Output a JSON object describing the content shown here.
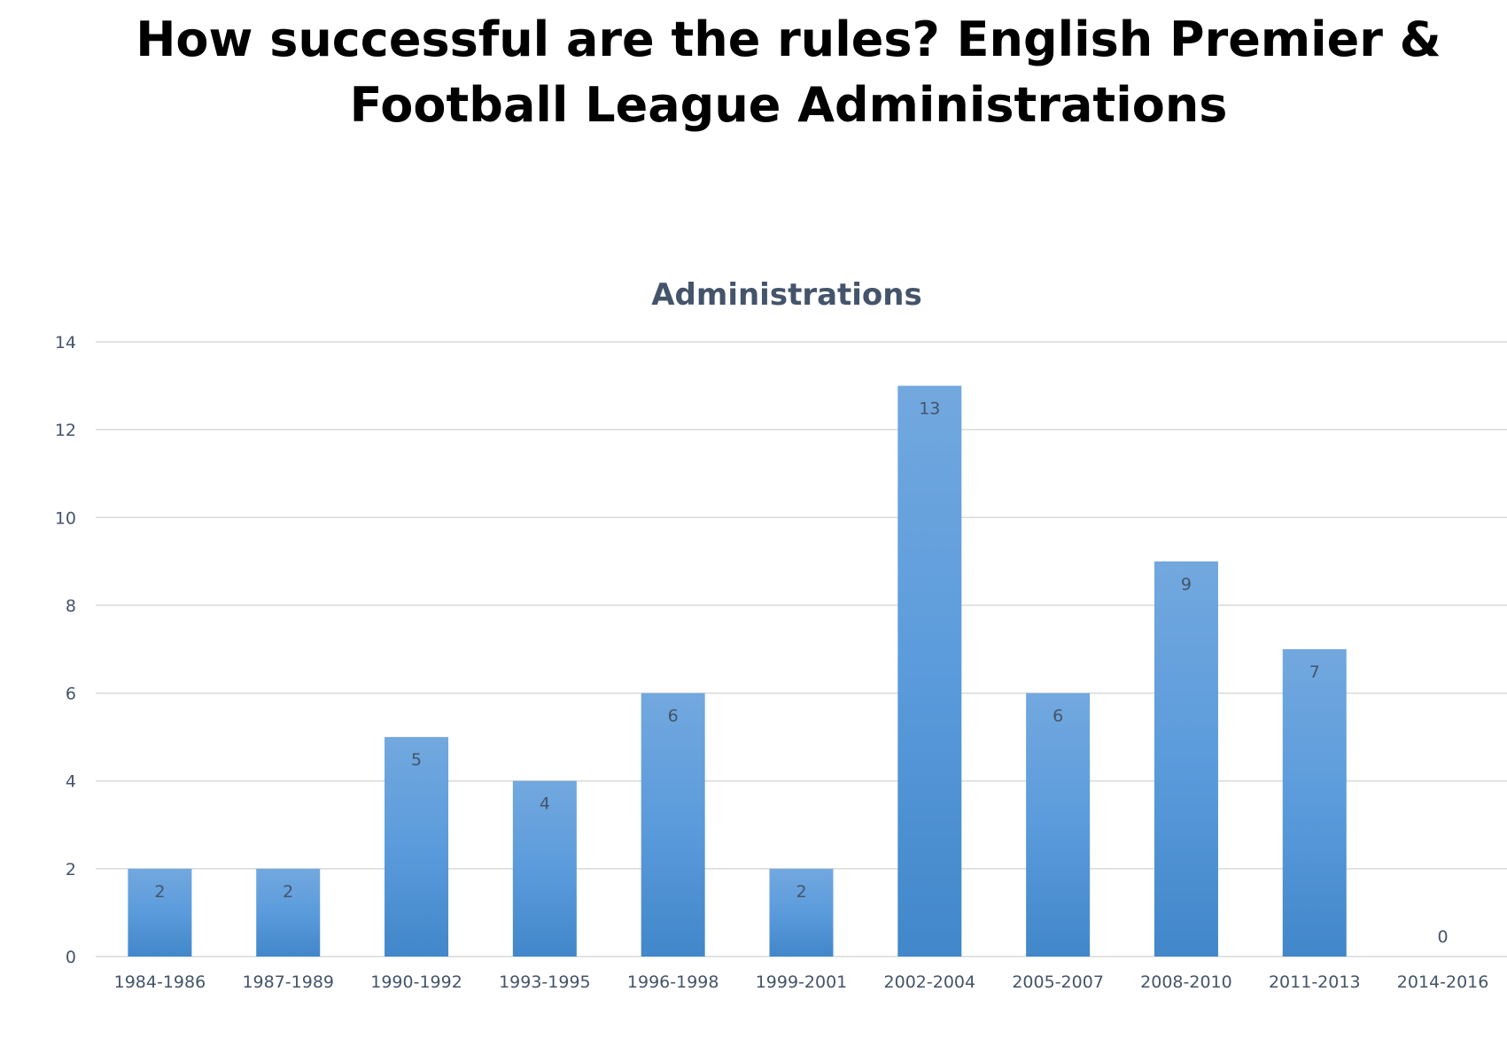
{
  "slide": {
    "title": "How successful are the rules? English Premier & Football League Administrations"
  },
  "colors": {
    "bar_top": "#72a8de",
    "bar_bottom": "#4187c9",
    "gridline": "#d9d9d9",
    "axis_text": "#44546a",
    "data_label": "#44546a",
    "chart_title": "#44546a"
  },
  "chart_data": {
    "type": "bar",
    "title": "Administrations",
    "xlabel": "",
    "ylabel": "",
    "categories": [
      "1984-1986",
      "1987-1989",
      "1990-1992",
      "1993-1995",
      "1996-1998",
      "1999-2001",
      "2002-2004",
      "2005-2007",
      "2008-2010",
      "2011-2013",
      "2014-2016"
    ],
    "values": [
      2,
      2,
      5,
      4,
      6,
      2,
      13,
      6,
      9,
      7,
      0
    ],
    "ylim": [
      0,
      14
    ],
    "yticks": [
      0,
      2,
      4,
      6,
      8,
      10,
      12,
      14
    ],
    "grid": true,
    "legend": "none",
    "data_labels": true
  }
}
